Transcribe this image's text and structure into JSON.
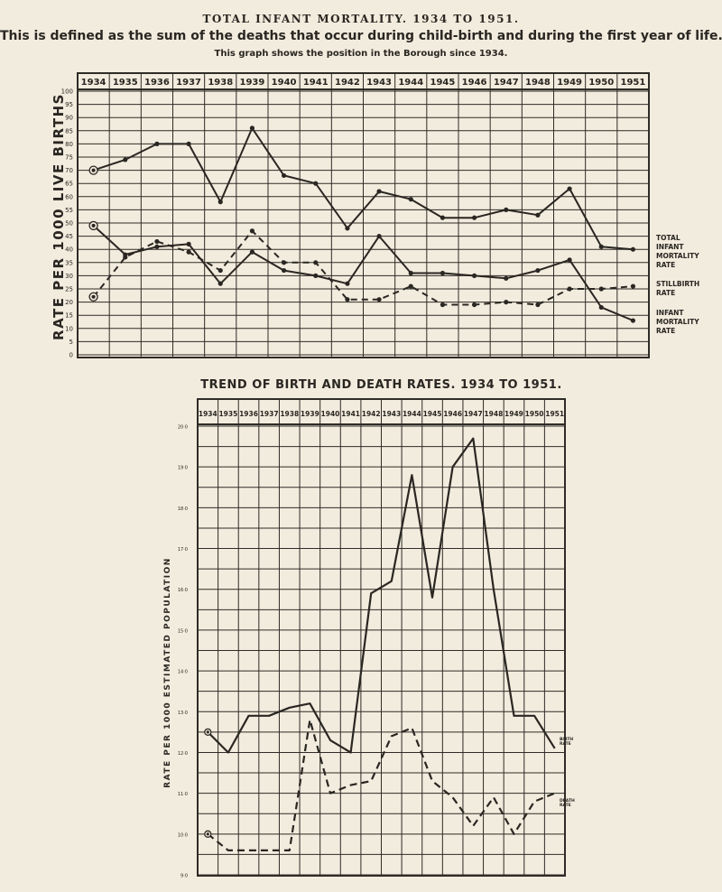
{
  "header": {
    "title": "TOTAL INFANT MORTALITY. 1934 TO 1951.",
    "subtitle": "This is defined as the sum of the deaths that occur during child-birth and during the first year of life.",
    "note": "This graph shows the position in the Borough since 1934."
  },
  "chart_data": [
    {
      "type": "line",
      "title": "",
      "xlabel": "",
      "ylabel": "RATE PER 1000 LIVE BIRTHS",
      "categories": [
        "1934",
        "1935",
        "1936",
        "1937",
        "1938",
        "1939",
        "1940",
        "1941",
        "1942",
        "1943",
        "1944",
        "1945",
        "1946",
        "1947",
        "1948",
        "1949",
        "1950",
        "1951"
      ],
      "y_ticks": [
        "100",
        "95",
        "90",
        "85",
        "80",
        "75",
        "70",
        "65",
        "60",
        "55",
        "50",
        "45",
        "40",
        "35",
        "30",
        "25",
        "20",
        "15",
        "10",
        "5",
        "0"
      ],
      "ylim": [
        0,
        100
      ],
      "grid": true,
      "legend": "right",
      "series": [
        {
          "name": "TOTAL INFANT MORTALITY RATE",
          "style": "solid",
          "values": [
            70,
            74,
            80,
            80,
            58,
            86,
            68,
            65,
            48,
            62,
            59,
            52,
            52,
            55,
            53,
            63,
            41,
            40
          ]
        },
        {
          "name": "STILLBIRTH RATE",
          "style": "dashed",
          "values": [
            22,
            37,
            43,
            39,
            32,
            47,
            35,
            35,
            21,
            21,
            26,
            19,
            19,
            20,
            19,
            25,
            25,
            26
          ]
        },
        {
          "name": "INFANT MORTALITY RATE",
          "style": "solid",
          "values": [
            49,
            38,
            41,
            42,
            27,
            39,
            32,
            30,
            27,
            45,
            31,
            31,
            30,
            29,
            32,
            36,
            18,
            13
          ]
        }
      ]
    },
    {
      "type": "line",
      "title": "TREND OF BIRTH AND DEATH RATES. 1934 TO 1951.",
      "xlabel": "",
      "ylabel": "RATE PER 1000 ESTIMATED POPULATION",
      "categories": [
        "1934",
        "1935",
        "1936",
        "1937",
        "1938",
        "1939",
        "1940",
        "1941",
        "1942",
        "1943",
        "1944",
        "1945",
        "1946",
        "1947",
        "1948",
        "1949",
        "1950",
        "1951"
      ],
      "y_ticks": [
        "20·0",
        "19·0",
        "18·0",
        "17·0",
        "16·0",
        "15·0",
        "14·0",
        "13·0",
        "12·0",
        "11·0",
        "10·0",
        "9·0"
      ],
      "ylim": [
        9,
        20
      ],
      "grid": true,
      "legend": "right",
      "series": [
        {
          "name": "BIRTH RATE",
          "style": "solid",
          "values": [
            12.5,
            12.0,
            12.9,
            12.9,
            13.1,
            13.2,
            12.3,
            12.0,
            15.9,
            16.2,
            18.8,
            15.8,
            19.0,
            19.7,
            16.0,
            12.9,
            12.9,
            12.1
          ]
        },
        {
          "name": "DEATH RATE",
          "style": "dashed",
          "values": [
            10.0,
            9.6,
            9.6,
            9.6,
            9.6,
            12.8,
            11.0,
            11.2,
            11.3,
            12.4,
            12.6,
            11.3,
            10.9,
            10.2,
            10.9,
            10.0,
            10.8,
            11.0
          ]
        }
      ]
    }
  ]
}
